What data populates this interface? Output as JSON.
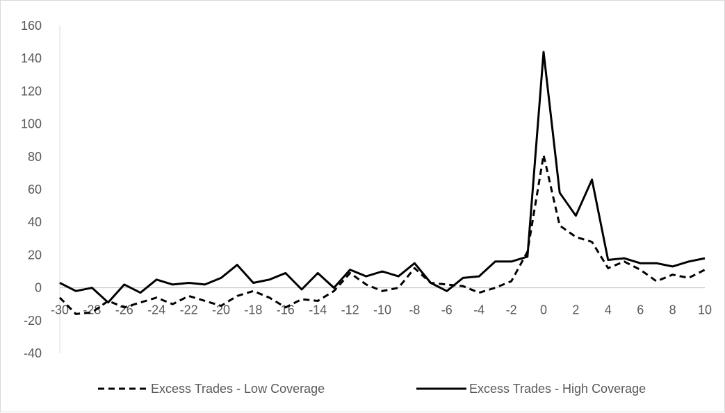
{
  "chart_data": {
    "type": "line",
    "title": "",
    "xlabel": "",
    "ylabel": "",
    "xlim": [
      -30,
      10
    ],
    "ylim": [
      -40,
      160
    ],
    "y_ticks": [
      -40,
      -20,
      0,
      20,
      40,
      60,
      80,
      100,
      120,
      140,
      160
    ],
    "x_ticks": [
      -30,
      -28,
      -26,
      -24,
      -22,
      -20,
      -18,
      -16,
      -14,
      -12,
      -10,
      -8,
      -6,
      -4,
      -2,
      0,
      2,
      4,
      6,
      8,
      10
    ],
    "grid": false,
    "legend_position": "bottom",
    "x": [
      -30,
      -29,
      -28,
      -27,
      -26,
      -25,
      -24,
      -23,
      -22,
      -21,
      -20,
      -19,
      -18,
      -17,
      -16,
      -15,
      -14,
      -13,
      -12,
      -11,
      -10,
      -9,
      -8,
      -7,
      -6,
      -5,
      -4,
      -3,
      -2,
      -1,
      0,
      1,
      2,
      3,
      4,
      5,
      6,
      7,
      8,
      9,
      10
    ],
    "series": [
      {
        "name": "Excess Trades - Low Coverage",
        "style": "dashed",
        "color": "#000000",
        "values": [
          -6,
          -16,
          -15,
          -8,
          -12,
          -9,
          -6,
          -10,
          -5,
          -8,
          -11,
          -5,
          -2,
          -6,
          -12,
          -7,
          -8,
          -2,
          9,
          2,
          -2,
          0,
          12,
          3,
          2,
          1,
          -3,
          0,
          4,
          22,
          81,
          38,
          31,
          28,
          12,
          16,
          11,
          4,
          8,
          6,
          11
        ]
      },
      {
        "name": "Excess Trades - High Coverage",
        "style": "solid",
        "color": "#000000",
        "values": [
          3,
          -2,
          0,
          -9,
          2,
          -3,
          5,
          2,
          3,
          2,
          6,
          14,
          3,
          5,
          9,
          -1,
          9,
          0,
          11,
          7,
          10,
          7,
          15,
          3,
          -2,
          6,
          7,
          16,
          16,
          19,
          144,
          58,
          44,
          66,
          17,
          18,
          15,
          15,
          13,
          16,
          18
        ]
      }
    ]
  }
}
